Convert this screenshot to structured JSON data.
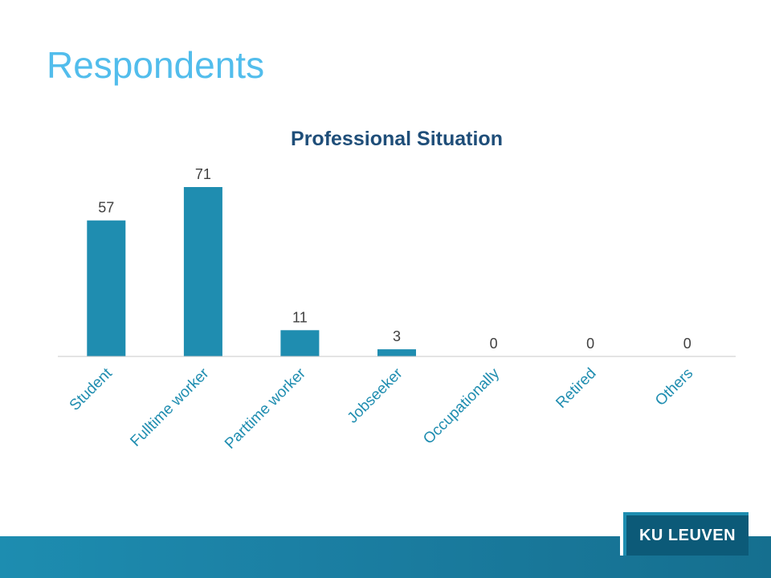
{
  "slide": {
    "title": "Respondents"
  },
  "colors": {
    "title": "#52bdec",
    "bar": "#1f8db0",
    "axis": "#c8c8c8",
    "chart_title": "#1f4e79",
    "footer": "#1d8db0",
    "logo_bg": "#0c5a78"
  },
  "chart_data": {
    "type": "bar",
    "title": "Professional Situation",
    "categories": [
      "Student",
      "Fulltime worker",
      "Parttime worker",
      "Jobseeker",
      "Occupationally",
      "Retired",
      "Others"
    ],
    "values": [
      57,
      71,
      11,
      3,
      0,
      0,
      0
    ],
    "xlabel": "",
    "ylabel": "",
    "ylim": [
      0,
      71
    ],
    "data_labels": true,
    "grid": false,
    "legend": "none"
  },
  "logo": {
    "text": "KU LEUVEN"
  }
}
